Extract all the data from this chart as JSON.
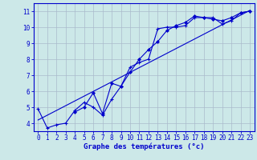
{
  "xlabel": "Graphe des températures (°c)",
  "background_color": "#cce8e8",
  "grid_color": "#aabbcc",
  "line_color": "#0000cc",
  "xlim": [
    -0.5,
    23.5
  ],
  "ylim": [
    3.5,
    11.5
  ],
  "xticks": [
    0,
    1,
    2,
    3,
    4,
    5,
    6,
    7,
    8,
    9,
    10,
    11,
    12,
    13,
    14,
    15,
    16,
    17,
    18,
    19,
    20,
    21,
    22,
    23
  ],
  "yticks": [
    4,
    5,
    6,
    7,
    8,
    9,
    10,
    11
  ],
  "line1_x": [
    0,
    1,
    2,
    3,
    4,
    5,
    6,
    7,
    8,
    9,
    10,
    11,
    12,
    13,
    14,
    15,
    16,
    17,
    18,
    19,
    20,
    21,
    22,
    23
  ],
  "line1_y": [
    4.9,
    3.7,
    3.9,
    4.0,
    4.8,
    5.3,
    5.0,
    4.5,
    5.5,
    6.3,
    7.5,
    7.8,
    8.0,
    9.9,
    10.0,
    10.0,
    10.1,
    10.6,
    10.6,
    10.6,
    10.2,
    10.4,
    10.9,
    11.0
  ],
  "line2_x": [
    4,
    5,
    6,
    7,
    8,
    9,
    10,
    11,
    12,
    13,
    14,
    15,
    16,
    17,
    18,
    19,
    20,
    21,
    22,
    23
  ],
  "line2_y": [
    4.7,
    5.0,
    5.9,
    4.6,
    6.5,
    6.3,
    7.2,
    8.0,
    8.6,
    9.1,
    9.8,
    10.1,
    10.3,
    10.7,
    10.6,
    10.5,
    10.4,
    10.6,
    10.9,
    11.0
  ],
  "line3_x": [
    0,
    23
  ],
  "line3_y": [
    4.2,
    11.05
  ],
  "tick_fontsize": 5.5,
  "label_fontsize": 6.5
}
